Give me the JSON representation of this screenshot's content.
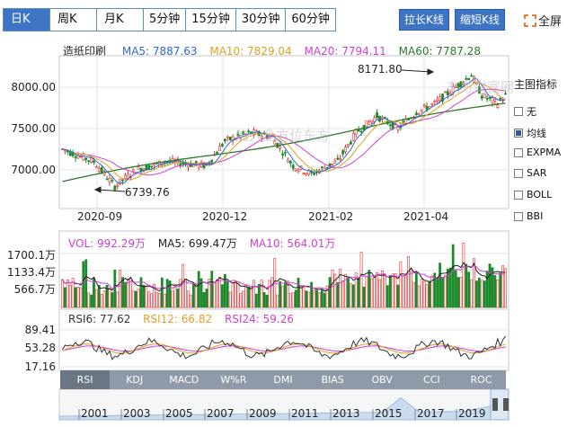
{
  "toolbar": {
    "periods": [
      "日K",
      "周K",
      "月K",
      "5分钟",
      "15分钟",
      "30分钟",
      "60分钟"
    ],
    "stretch_label": "拉长K线",
    "shrink_label": "缩短K线",
    "fullscreen_label": "全屏"
  },
  "main_legend": {
    "title": "造纸印刷",
    "ma5": "MA5: 7887.63",
    "ma10": "MA10: 7829.04",
    "ma20": "MA20: 7794.11",
    "ma60": "MA60: 7787.28"
  },
  "price_axis": [
    "8000.00",
    "7500.00",
    "7000.00"
  ],
  "date_axis": [
    "2020-09",
    "2020-12",
    "2021-02",
    "2021-04"
  ],
  "annotations": {
    "high": "8171.80",
    "low": "6739.76"
  },
  "indicator_panel": {
    "title": "主图指标",
    "items": [
      {
        "label": "无",
        "checked": false
      },
      {
        "label": "均线",
        "checked": true
      },
      {
        "label": "EXPMA",
        "checked": false
      },
      {
        "label": "SAR",
        "checked": false
      },
      {
        "label": "BOLL",
        "checked": false
      },
      {
        "label": "BBI",
        "checked": false
      }
    ]
  },
  "volume_legend": {
    "vol": "VOL: 992.29万",
    "ma5": "MA5: 699.47万",
    "ma10": "MA10: 564.01万"
  },
  "volume_axis": [
    "1700.1万",
    "1133.4万",
    "566.7万"
  ],
  "rsi_legend": {
    "rsi6": "RSI6: 77.62",
    "rsi12": "RSI12: 66.82",
    "rsi24": "RSI24: 59.26"
  },
  "rsi_axis": [
    "89.41",
    "53.28",
    "17.16"
  ],
  "indicator_tabs": [
    "RSI",
    "KDJ",
    "MACD",
    "W%R",
    "DMI",
    "BIAS",
    "OBV",
    "CCI",
    "ROC"
  ],
  "timeline_years": [
    "2001",
    "2003",
    "2005",
    "2007",
    "2009",
    "2011",
    "2013",
    "2015",
    "2017",
    "2019"
  ],
  "watermarks": [
    "东方财富网",
    "加入全方位东方"
  ],
  "colors": {
    "accent": "#3d74c4",
    "up": "#e03030",
    "down": "#1a8a2a",
    "ma5": "#3366cc",
    "ma10": "#e0a020",
    "ma20": "#d040d0",
    "ma60": "#2a7a2a"
  }
}
